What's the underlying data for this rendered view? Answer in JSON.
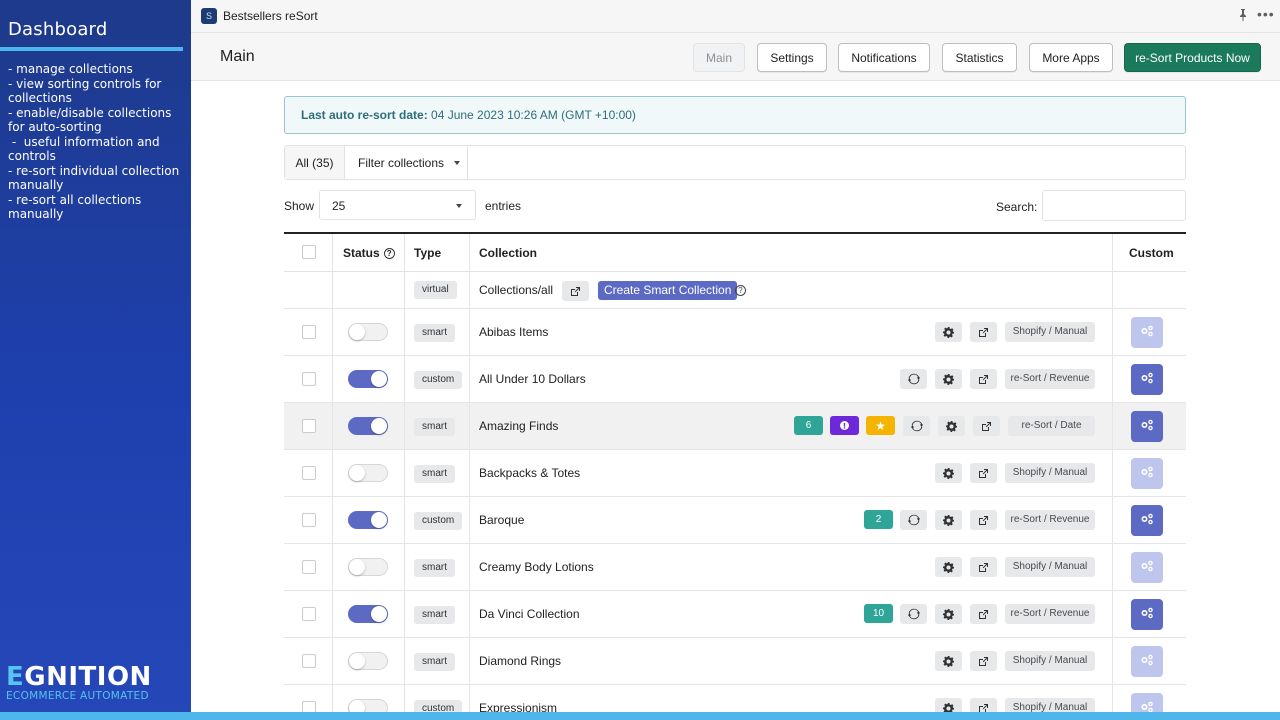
{
  "promo": {
    "title": "Dashboard",
    "items": [
      "- manage collections",
      "- view sorting controls for collections",
      "- enable/disable collections for auto-sorting",
      " -  useful information and controls",
      "- re-sort individual collection manually",
      "- re-sort all collections manually"
    ],
    "logo_rest": "GNITION",
    "logo_first": "E",
    "logo_sub": "ECOMMERCE AUTOMATED"
  },
  "app": {
    "name": "Bestsellers reSort",
    "icon": "S"
  },
  "header": {
    "title": "Main",
    "buttons": {
      "main": "Main",
      "settings": "Settings",
      "notifications": "Notifications",
      "statistics": "Statistics",
      "more_apps": "More Apps",
      "resort_now": "re-Sort Products Now"
    }
  },
  "notice": {
    "label": "Last auto re-sort date:",
    "value": " 04 June 2023 10:26 AM (GMT +10:00)"
  },
  "filter": {
    "all": "All (35)",
    "filter_label": "Filter collections"
  },
  "entries": {
    "show": "Show",
    "value": "25",
    "entries": "entries",
    "search": "Search:"
  },
  "table": {
    "headers": {
      "status": "Status",
      "type": "Type",
      "collection": "Collection",
      "custom": "Custom"
    },
    "virtual_row": {
      "type": "virtual",
      "name": "Collections/all",
      "create": "Create Smart Collection"
    },
    "rows": [
      {
        "type": "smart",
        "name": "Abibas Items",
        "on": false,
        "sort": "Shopify / Manual"
      },
      {
        "type": "custom",
        "name": "All Under 10 Dollars",
        "on": true,
        "sort": "re-Sort / Revenue"
      },
      {
        "type": "smart",
        "name": "Amazing Finds",
        "on": true,
        "sort": "re-Sort / Date",
        "count": "6"
      },
      {
        "type": "smart",
        "name": "Backpacks & Totes",
        "on": false,
        "sort": "Shopify / Manual"
      },
      {
        "type": "custom",
        "name": "Baroque",
        "on": true,
        "sort": "re-Sort / Revenue",
        "count": "2"
      },
      {
        "type": "smart",
        "name": "Creamy Body Lotions",
        "on": false,
        "sort": "Shopify / Manual"
      },
      {
        "type": "smart",
        "name": "Da Vinci Collection",
        "on": true,
        "sort": "re-Sort / Revenue",
        "count": "10"
      },
      {
        "type": "smart",
        "name": "Diamond Rings",
        "on": false,
        "sort": "Shopify / Manual"
      },
      {
        "type": "custom",
        "name": "Expressionism",
        "on": false,
        "sort": "Shopify / Manual"
      }
    ]
  },
  "colors": {
    "accent": "#5c6ac4",
    "primary_green": "#1a7a5b",
    "count_teal": "#2ea597",
    "promo_blue": "#1e40af",
    "promo_light": "#4fb6ec"
  }
}
